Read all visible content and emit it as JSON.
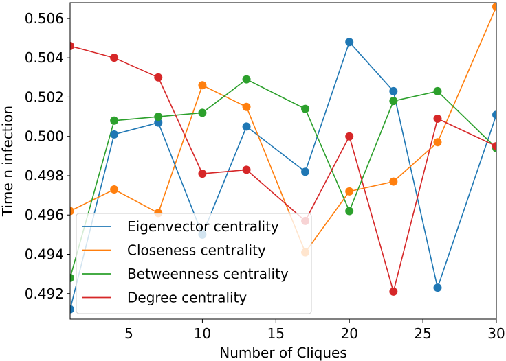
{
  "chart_data": {
    "type": "line",
    "xlabel": "Number of Cliques",
    "ylabel": "Time n infection",
    "xlim": [
      1,
      30
    ],
    "ylim": [
      0.4907,
      0.5068
    ],
    "xticks": [
      5,
      10,
      15,
      20,
      25,
      30
    ],
    "yticks": [
      0.492,
      0.494,
      0.496,
      0.498,
      0.5,
      0.502,
      0.504,
      0.506
    ],
    "ytick_labels": [
      "0.492",
      "0.494",
      "0.496",
      "0.498",
      "0.500",
      "0.502",
      "0.504",
      "0.506"
    ],
    "x": [
      1,
      4,
      7,
      10,
      13,
      17,
      20,
      23,
      26,
      30
    ],
    "grid": false,
    "legend_position": "lower-left",
    "series": [
      {
        "name": "Eigenvector centrality",
        "color": "#1f77b4",
        "values": [
          0.4912,
          0.5001,
          0.5007,
          0.495,
          0.5005,
          0.4982,
          0.5048,
          0.5023,
          0.4923,
          0.5011
        ]
      },
      {
        "name": "Closeness centrality",
        "color": "#ff7f0e",
        "values": [
          0.4962,
          0.4973,
          0.4961,
          0.5026,
          0.5015,
          0.4941,
          0.4972,
          0.4977,
          0.4997,
          0.5066
        ]
      },
      {
        "name": "Betweenness centrality",
        "color": "#2ca02c",
        "values": [
          0.4928,
          0.5008,
          0.501,
          0.5012,
          0.5029,
          0.5014,
          0.4962,
          0.5018,
          0.5023,
          0.4994
        ]
      },
      {
        "name": "Degree centrality",
        "color": "#d62728",
        "values": [
          0.5046,
          0.504,
          0.503,
          0.4981,
          0.4983,
          0.4957,
          0.5,
          0.4921,
          0.5009,
          0.4995
        ]
      }
    ]
  }
}
